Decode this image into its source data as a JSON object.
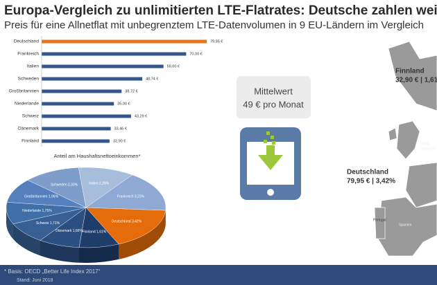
{
  "header": {
    "title": "Europa-Vergleich zu unlimitierten LTE-Flatrates: Deutsche zahlen wei",
    "subtitle": "Preis für eine Allnetflat mit unbegrenztem LTE-Datenvolumen in 9 EU-Ländern im Vergleich"
  },
  "chart_data": [
    {
      "type": "bar",
      "categories": [
        "Deutschland",
        "Frankreich",
        "Italien",
        "Schweden",
        "Großbritannien",
        "Niederlande",
        "Schweiz",
        "Dänemark",
        "Finnland"
      ],
      "values": [
        79.95,
        70.0,
        59.0,
        48.74,
        38.72,
        35.0,
        43.29,
        33.46,
        32.9
      ],
      "value_labels": [
        "79,95 €",
        "70,00 €",
        "59,00 €",
        "48,74 €",
        "38,72 €",
        "35,00 €",
        "43,29 €",
        "33,46 €",
        "32,90 €"
      ],
      "colors": [
        "#e8731a",
        "#34568b",
        "#34568b",
        "#34568b",
        "#34568b",
        "#34568b",
        "#34568b",
        "#34568b",
        "#34568b"
      ]
    },
    {
      "type": "pie",
      "title": "Anteil am Haushaltsnettoeinkommen*",
      "categories": [
        "Deutschland",
        "Finnland",
        "Dänemark",
        "Schweiz",
        "Niederlande",
        "Großbritannien",
        "Schweden",
        "Italien",
        "Frankreich"
      ],
      "values": [
        3.42,
        1.61,
        1.66,
        1.71,
        1.75,
        1.96,
        2.3,
        2.26,
        3.23
      ],
      "value_labels": [
        "3,42%",
        "1,61%",
        "1,66%",
        "1,71%",
        "1,75%",
        "1,96%",
        "2,30%",
        "2,26%",
        "3,23%"
      ],
      "colors": [
        "#e46c0a",
        "#1f3d6b",
        "#2b4f80",
        "#375f94",
        "#406ea6",
        "#5580bd",
        "#7f9dca",
        "#a7bddc",
        "#8ea9d3"
      ]
    }
  ],
  "infobox": {
    "label": "Mittelwert",
    "value": "49 € pro Monat"
  },
  "map": {
    "finland_name": "Finnland",
    "finland_value": "32,90 € | 1,61",
    "germany_name": "Deutschland",
    "germany_value": "79,95 € | 3,42%",
    "uk_line1": "Groß-",
    "uk_line2": "britannien",
    "portugal": "Portugal",
    "spain": "Spanien"
  },
  "footer": {
    "note": "* Basis: OECD „Better Life Index 2017“",
    "date": "Stand: Juni 2018"
  }
}
